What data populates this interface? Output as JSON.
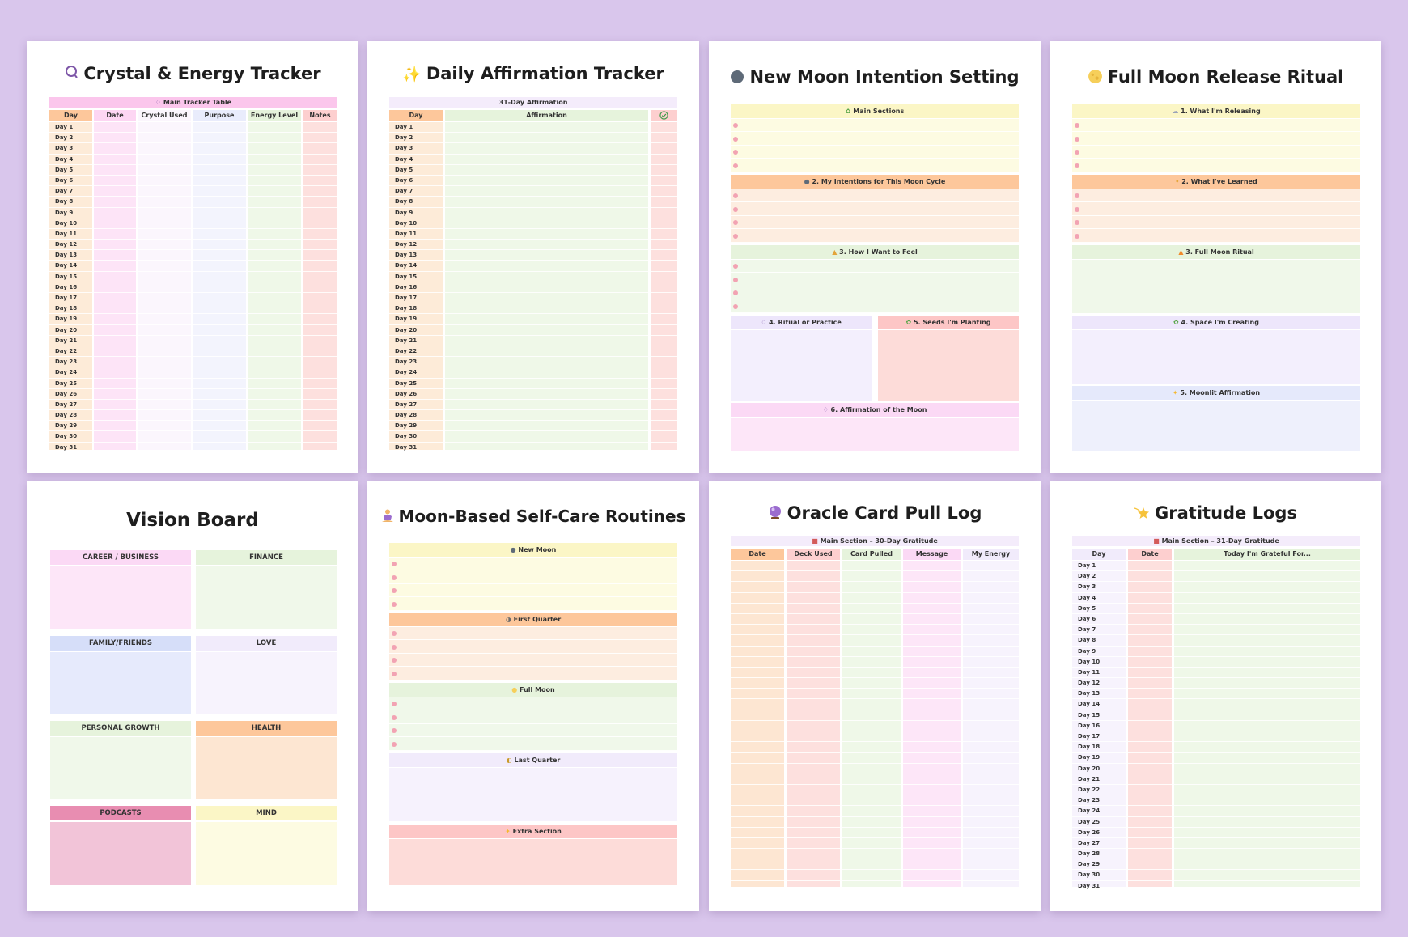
{
  "crystal": {
    "icon": "crystal-icon",
    "title": "Crystal & Energy Tracker",
    "section": "Main Tracker Table",
    "columns": [
      "Day",
      "Date",
      "Crystal Used",
      "Purpose",
      "Energy Level",
      "Notes"
    ]
  },
  "affirmation": {
    "icon": "sparkles-icon",
    "title": "Daily Affirmation Tracker",
    "section": "31-Day Affirmation",
    "columns": [
      "Day",
      "Affirmation"
    ]
  },
  "days": [
    "Day 1",
    "Day 2",
    "Day 3",
    "Day 4",
    "Day 5",
    "Day 6",
    "Day 7",
    "Day 8",
    "Day 9",
    "Day 10",
    "Day 11",
    "Day 12",
    "Day 13",
    "Day 14",
    "Day 15",
    "Day 16",
    "Day 17",
    "Day 18",
    "Day 19",
    "Day 20",
    "Day 21",
    "Day 22",
    "Day 23",
    "Day 24",
    "Day 25",
    "Day 26",
    "Day 27",
    "Day 28",
    "Day 29",
    "Day 30",
    "Day 31"
  ],
  "newmoon": {
    "icon": "new-moon-icon",
    "title": "New Moon Intention Setting",
    "s1": "Main Sections",
    "s2": "2. My Intentions for This Moon Cycle",
    "s3": "3. How I Want to Feel",
    "s4": "4. Ritual or Practice",
    "s5": "5. Seeds I'm Planting",
    "s6": "6. Affirmation of the Moon"
  },
  "fullmoon": {
    "icon": "full-moon-icon",
    "title": "Full Moon Release Ritual",
    "s1": "1. What I'm Releasing",
    "s2": "2. What I've Learned",
    "s3": "3. Full Moon Ritual",
    "s4": "4. Space I'm Creating",
    "s5": "5. Moonlit Affirmation"
  },
  "vision": {
    "title": "Vision Board",
    "cells": [
      "CAREER / BUSINESS",
      "FINANCE",
      "FAMILY/FRIENDS",
      "LOVE",
      "PERSONAL GROWTH",
      "HEALTH",
      "PODCASTS",
      "MIND"
    ]
  },
  "selfcare": {
    "icon": "meditation-icon",
    "title": "Moon-Based Self-Care Routines",
    "s1": "New Moon",
    "s2": "First Quarter",
    "s3": "Full Moon",
    "s4": "Last Quarter",
    "s5": "Extra Section"
  },
  "oracle": {
    "icon": "crystal-ball-icon",
    "title": "Oracle Card Pull Log",
    "section": "Main Section – 30-Day Gratitude",
    "columns": [
      "Date",
      "Deck Used",
      "Card Pulled",
      "Message",
      "My Energy"
    ]
  },
  "gratitude": {
    "icon": "shooting-star-icon",
    "title": "Gratitude Logs",
    "section": "Main Section – 31-Day Gratitude",
    "columns": [
      "Day",
      "Date",
      "Today I'm Grateful For..."
    ]
  },
  "colors": {
    "background": "#d9c6ec",
    "pink": "#fde4f7",
    "peach": "#fdd0a8",
    "mint": "#e9f5df",
    "lavender": "#f1ebfb",
    "yellow": "#fbf8cf",
    "rose": "#fde0de"
  }
}
